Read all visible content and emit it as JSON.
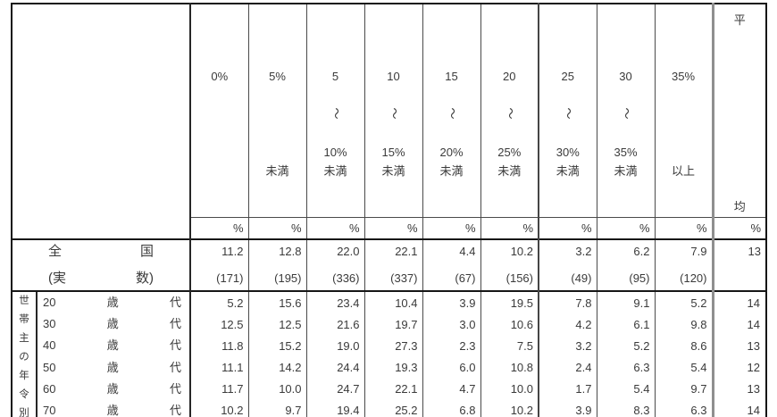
{
  "table": {
    "header": {
      "range_columns": [
        {
          "line1": "0%",
          "wave": "",
          "line3": "",
          "line4": ""
        },
        {
          "line1": "5%",
          "wave": "",
          "line3": "",
          "line4": "未満"
        },
        {
          "line1": "5",
          "wave": "〜",
          "line3": "10%",
          "line4": "未満"
        },
        {
          "line1": "10",
          "wave": "〜",
          "line3": "15%",
          "line4": "未満"
        },
        {
          "line1": "15",
          "wave": "〜",
          "line3": "20%",
          "line4": "未満"
        },
        {
          "line1": "20",
          "wave": "〜",
          "line3": "25%",
          "line4": "未満"
        },
        {
          "line1": "25",
          "wave": "〜",
          "line3": "30%",
          "line4": "未満"
        },
        {
          "line1": "30",
          "wave": "〜",
          "line3": "35%",
          "line4": "未満"
        },
        {
          "line1": "35%",
          "wave": "",
          "line3": "",
          "line4": "以上"
        }
      ],
      "average": {
        "char_top": "平",
        "char_bottom": "均"
      },
      "unit": "%"
    },
    "national": {
      "label_char1": "全",
      "label_char2": "国",
      "sublabel_open": "(実",
      "sublabel_close": "数)",
      "values": [
        "11.2",
        "12.8",
        "22.0",
        "22.1",
        "4.4",
        "10.2",
        "3.2",
        "6.2",
        "7.9"
      ],
      "counts": [
        "(171)",
        "(195)",
        "(336)",
        "(337)",
        "(67)",
        "(156)",
        "(49)",
        "(95)",
        "(120)"
      ],
      "average": "13",
      "average_count": ""
    },
    "group_label_chars": [
      "世",
      "帯",
      "主",
      "の",
      "年",
      "令",
      "別"
    ],
    "age_rows": [
      {
        "num": "20",
        "char1": "歳",
        "char2": "代",
        "values": [
          "5.2",
          "15.6",
          "23.4",
          "10.4",
          "3.9",
          "19.5",
          "7.8",
          "9.1",
          "5.2"
        ],
        "average": "14"
      },
      {
        "num": "30",
        "char1": "歳",
        "char2": "代",
        "values": [
          "12.5",
          "12.5",
          "21.6",
          "19.7",
          "3.0",
          "10.6",
          "4.2",
          "6.1",
          "9.8"
        ],
        "average": "14"
      },
      {
        "num": "40",
        "char1": "歳",
        "char2": "代",
        "values": [
          "11.8",
          "15.2",
          "19.0",
          "27.3",
          "2.3",
          "7.5",
          "3.2",
          "5.2",
          "8.6"
        ],
        "average": "13"
      },
      {
        "num": "50",
        "char1": "歳",
        "char2": "代",
        "values": [
          "11.1",
          "14.2",
          "24.4",
          "19.3",
          "6.0",
          "10.8",
          "2.4",
          "6.3",
          "5.4"
        ],
        "average": "12"
      },
      {
        "num": "60",
        "char1": "歳",
        "char2": "代",
        "values": [
          "11.7",
          "10.0",
          "24.7",
          "22.1",
          "4.7",
          "10.0",
          "1.7",
          "5.4",
          "9.7"
        ],
        "average": "13"
      },
      {
        "num": "70",
        "char1": "歳",
        "char2": "代",
        "values": [
          "10.2",
          "9.7",
          "19.4",
          "25.2",
          "6.8",
          "10.2",
          "3.9",
          "8.3",
          "6.3"
        ],
        "average": "14"
      }
    ]
  }
}
